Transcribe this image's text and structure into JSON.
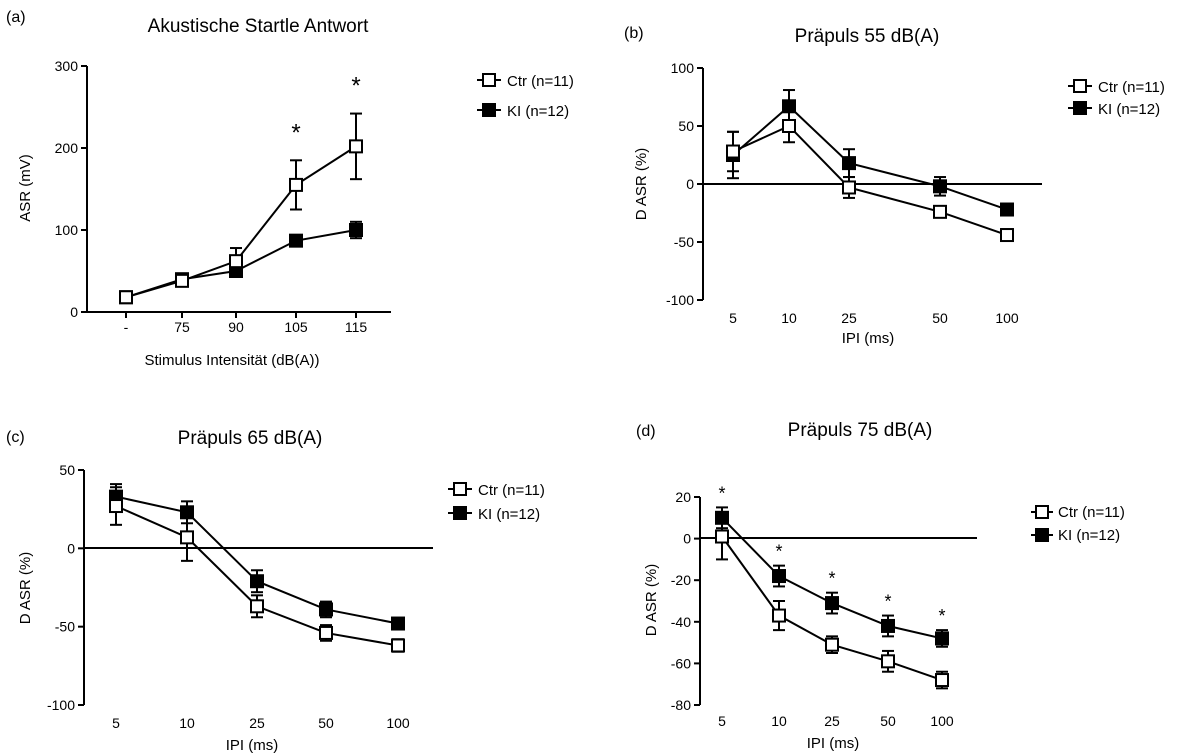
{
  "chart_data": [
    {
      "panel_label": "(a)",
      "type": "line",
      "title": "Akustische Startle Antwort",
      "xlabel": "Stimulus  Intensität (dB(A))",
      "ylabel": "ASR (mV)",
      "categories": [
        "-",
        "75",
        "90",
        "105",
        "115"
      ],
      "ylim": [
        0,
        300
      ],
      "yticks": [
        0,
        100,
        200,
        300
      ],
      "series": [
        {
          "name": "Ctr (n=11)",
          "marker": "open-square",
          "values": [
            18,
            38,
            62,
            155,
            202
          ],
          "errors": [
            4,
            5,
            16,
            30,
            40
          ]
        },
        {
          "name": "KI (n=12)",
          "marker": "filled-square",
          "values": [
            18,
            40,
            50,
            87,
            100
          ],
          "errors": [
            3,
            5,
            6,
            6,
            10
          ]
        }
      ],
      "annotations": [
        {
          "text": "*",
          "category": "105"
        },
        {
          "text": "*",
          "category": "115"
        }
      ],
      "legend": "right"
    },
    {
      "panel_label": "(b)",
      "type": "line",
      "title": "Präpuls 55 dB(A)",
      "xlabel": "IPI (ms)",
      "ylabel": "D ASR (%)",
      "categories": [
        "5",
        "10",
        "25",
        "50",
        "100"
      ],
      "ylim": [
        -100,
        100
      ],
      "yticks": [
        -100,
        -50,
        0,
        50,
        100
      ],
      "series": [
        {
          "name": "Ctr (n=11)",
          "marker": "open-square",
          "values": [
            28,
            50,
            -3,
            -24,
            -44
          ],
          "errors": [
            17,
            14,
            9,
            4,
            5
          ]
        },
        {
          "name": "KI (n=12)",
          "marker": "filled-square",
          "values": [
            25,
            67,
            18,
            -2,
            -22
          ],
          "errors": [
            20,
            14,
            12,
            8,
            5
          ]
        }
      ],
      "annotations": [],
      "legend": "right"
    },
    {
      "panel_label": "(c)",
      "type": "line",
      "title": "Präpuls 65 dB(A)",
      "xlabel": "IPI (ms)",
      "ylabel": "D ASR (%)",
      "categories": [
        "5",
        "10",
        "25",
        "50",
        "100"
      ],
      "ylim": [
        -100,
        50
      ],
      "yticks": [
        -100,
        -50,
        0,
        50
      ],
      "series": [
        {
          "name": "Ctr (n=11)",
          "marker": "open-square",
          "values": [
            27,
            7,
            -37,
            -54,
            -62
          ],
          "errors": [
            12,
            15,
            7,
            5,
            4
          ]
        },
        {
          "name": "KI (n=12)",
          "marker": "filled-square",
          "values": [
            33,
            23,
            -21,
            -39,
            -48
          ],
          "errors": [
            8,
            7,
            7,
            5,
            3
          ]
        }
      ],
      "annotations": [],
      "legend": "right"
    },
    {
      "panel_label": "(d)",
      "type": "line",
      "title": "Präpuls 75 dB(A)",
      "xlabel": "IPI (ms)",
      "ylabel": "D ASR (%)",
      "categories": [
        "5",
        "10",
        "25",
        "50",
        "100"
      ],
      "ylim": [
        -80,
        20
      ],
      "yticks": [
        -80,
        -60,
        -40,
        -20,
        0,
        20
      ],
      "series": [
        {
          "name": "Ctr (n=11)",
          "marker": "open-square",
          "values": [
            1,
            -37,
            -51,
            -59,
            -68
          ],
          "errors": [
            11,
            7,
            4,
            5,
            4
          ]
        },
        {
          "name": "KI (n=12)",
          "marker": "filled-square",
          "values": [
            10,
            -18,
            -31,
            -42,
            -48
          ],
          "errors": [
            5,
            5,
            5,
            5,
            4
          ]
        }
      ],
      "annotations": [
        {
          "text": "*",
          "category": "5"
        },
        {
          "text": "*",
          "category": "10"
        },
        {
          "text": "*",
          "category": "25"
        },
        {
          "text": "*",
          "category": "50"
        },
        {
          "text": "*",
          "category": "100"
        }
      ],
      "legend": "right"
    }
  ]
}
